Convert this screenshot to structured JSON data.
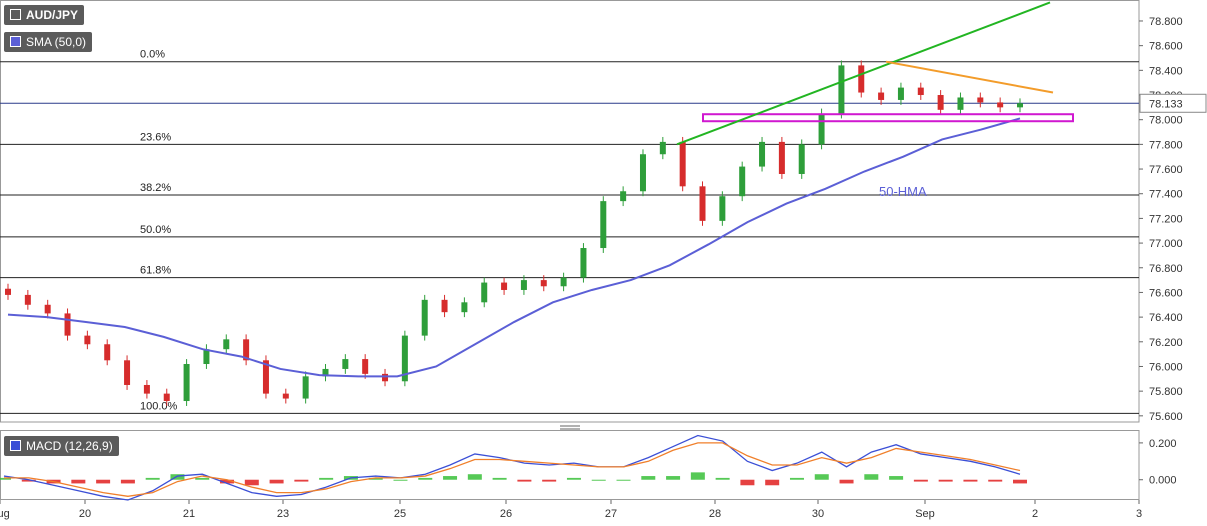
{
  "symbol": "AUD/JPY",
  "indicator_sma_label": "SMA (50,0)",
  "indicator_macd_label": "MACD (12,26,9)",
  "annotation_hma": "50-HMA",
  "colors": {
    "bull": "#2e9e3a",
    "bear": "#d62c2c",
    "hma": "#5b5fd6",
    "fib": "#222222",
    "green_trend": "#22b522",
    "orange_trend": "#f39c2a",
    "support_box": "#d018d0",
    "price_line": "#2a3a8a",
    "macd_line": "#3b4fd6",
    "signal_line": "#f07f2a",
    "hist_pos": "#38c038",
    "hist_neg": "#e02020"
  },
  "chart_data": [
    {
      "type": "candlestick",
      "title": "AUD/JPY",
      "current_price": "78.133",
      "y_ticks": [
        "78.800",
        "78.600",
        "78.400",
        "78.200",
        "78.000",
        "77.800",
        "77.600",
        "77.400",
        "77.200",
        "77.000",
        "76.800",
        "76.600",
        "76.400",
        "76.200",
        "76.000",
        "75.800",
        "75.600"
      ],
      "ylim": [
        75.55,
        78.97
      ],
      "x_ticks": [
        "Aug",
        "20",
        "21",
        "23",
        "25",
        "26",
        "27",
        "28",
        "30",
        "Sep",
        "2",
        "3"
      ],
      "fibonacci": [
        {
          "label": "0.0%",
          "value": 78.47
        },
        {
          "label": "23.6%",
          "value": 77.8
        },
        {
          "label": "38.2%",
          "value": 77.39
        },
        {
          "label": "50.0%",
          "value": 77.05
        },
        {
          "label": "61.8%",
          "value": 76.72
        },
        {
          "label": "100.0%",
          "value": 75.62
        }
      ],
      "hma_values": [
        76.42,
        76.4,
        76.36,
        76.32,
        76.24,
        76.14,
        76.08,
        75.98,
        75.93,
        75.92,
        75.92,
        76.0,
        76.18,
        76.36,
        76.52,
        76.62,
        76.7,
        76.82,
        76.99,
        77.17,
        77.32,
        77.44,
        77.58,
        77.7,
        77.84,
        77.92,
        78.01
      ],
      "close_values": [
        76.58,
        76.5,
        76.43,
        76.25,
        76.18,
        76.05,
        75.85,
        75.78,
        75.72,
        76.02,
        76.14,
        76.22,
        76.05,
        75.78,
        75.74,
        75.92,
        75.98,
        76.06,
        75.94,
        75.88,
        76.25,
        76.54,
        76.44,
        76.52,
        76.68,
        76.62,
        76.7,
        76.65,
        76.72,
        76.96,
        77.34,
        77.42,
        77.72,
        77.82,
        77.46,
        77.18,
        77.38,
        77.62,
        77.82,
        77.56,
        77.8,
        78.05,
        78.44,
        78.22,
        78.16,
        78.26,
        78.2,
        78.08,
        78.18,
        78.14,
        78.1,
        78.133
      ],
      "trendlines": [
        {
          "name": "green",
          "from": [
            27.6,
            77.8
          ],
          "to": [
            32.1,
            78.95
          ]
        },
        {
          "name": "orange",
          "from": [
            29.7,
            78.47
          ],
          "to": [
            32.0,
            78.22
          ]
        }
      ],
      "support_zone": [
        77.96,
        78.02
      ]
    },
    {
      "type": "line",
      "title": "MACD (12,26,9)",
      "y_ticks": [
        "0.200",
        "0.000"
      ],
      "ylim": [
        -0.11,
        0.27
      ],
      "series": [
        {
          "values": [
            0.02,
            0.0,
            -0.03,
            -0.06,
            -0.09,
            -0.11,
            -0.06,
            0.02,
            0.03,
            -0.02,
            -0.07,
            -0.09,
            -0.08,
            -0.04,
            0.01,
            0.02,
            0.01,
            0.03,
            0.08,
            0.14,
            0.12,
            0.09,
            0.08,
            0.09,
            0.07,
            0.07,
            0.12,
            0.18,
            0.24,
            0.21,
            0.1,
            0.05,
            0.09,
            0.15,
            0.07,
            0.15,
            0.19,
            0.14,
            0.12,
            0.1,
            0.07,
            0.03
          ]
        },
        {
          "values": [
            0.01,
            0.01,
            -0.01,
            -0.04,
            -0.07,
            -0.09,
            -0.07,
            -0.01,
            0.02,
            0.0,
            -0.04,
            -0.07,
            -0.07,
            -0.05,
            -0.01,
            0.01,
            0.01,
            0.02,
            0.06,
            0.11,
            0.11,
            0.1,
            0.09,
            0.08,
            0.07,
            0.07,
            0.1,
            0.16,
            0.2,
            0.2,
            0.13,
            0.08,
            0.08,
            0.12,
            0.09,
            0.12,
            0.17,
            0.15,
            0.13,
            0.11,
            0.08,
            0.05
          ]
        },
        {
          "values": [
            0.01,
            -0.01,
            -0.02,
            -0.02,
            -0.02,
            -0.02,
            0.01,
            0.03,
            0.01,
            -0.02,
            -0.03,
            -0.02,
            -0.01,
            0.01,
            0.02,
            0.01,
            0.0,
            0.01,
            0.02,
            0.03,
            0.01,
            -0.01,
            -0.01,
            0.01,
            0.0,
            0.0,
            0.02,
            0.02,
            0.04,
            0.01,
            -0.03,
            -0.03,
            0.01,
            0.03,
            -0.02,
            0.03,
            0.02,
            -0.01,
            -0.01,
            -0.01,
            -0.01,
            -0.02
          ]
        }
      ]
    }
  ]
}
